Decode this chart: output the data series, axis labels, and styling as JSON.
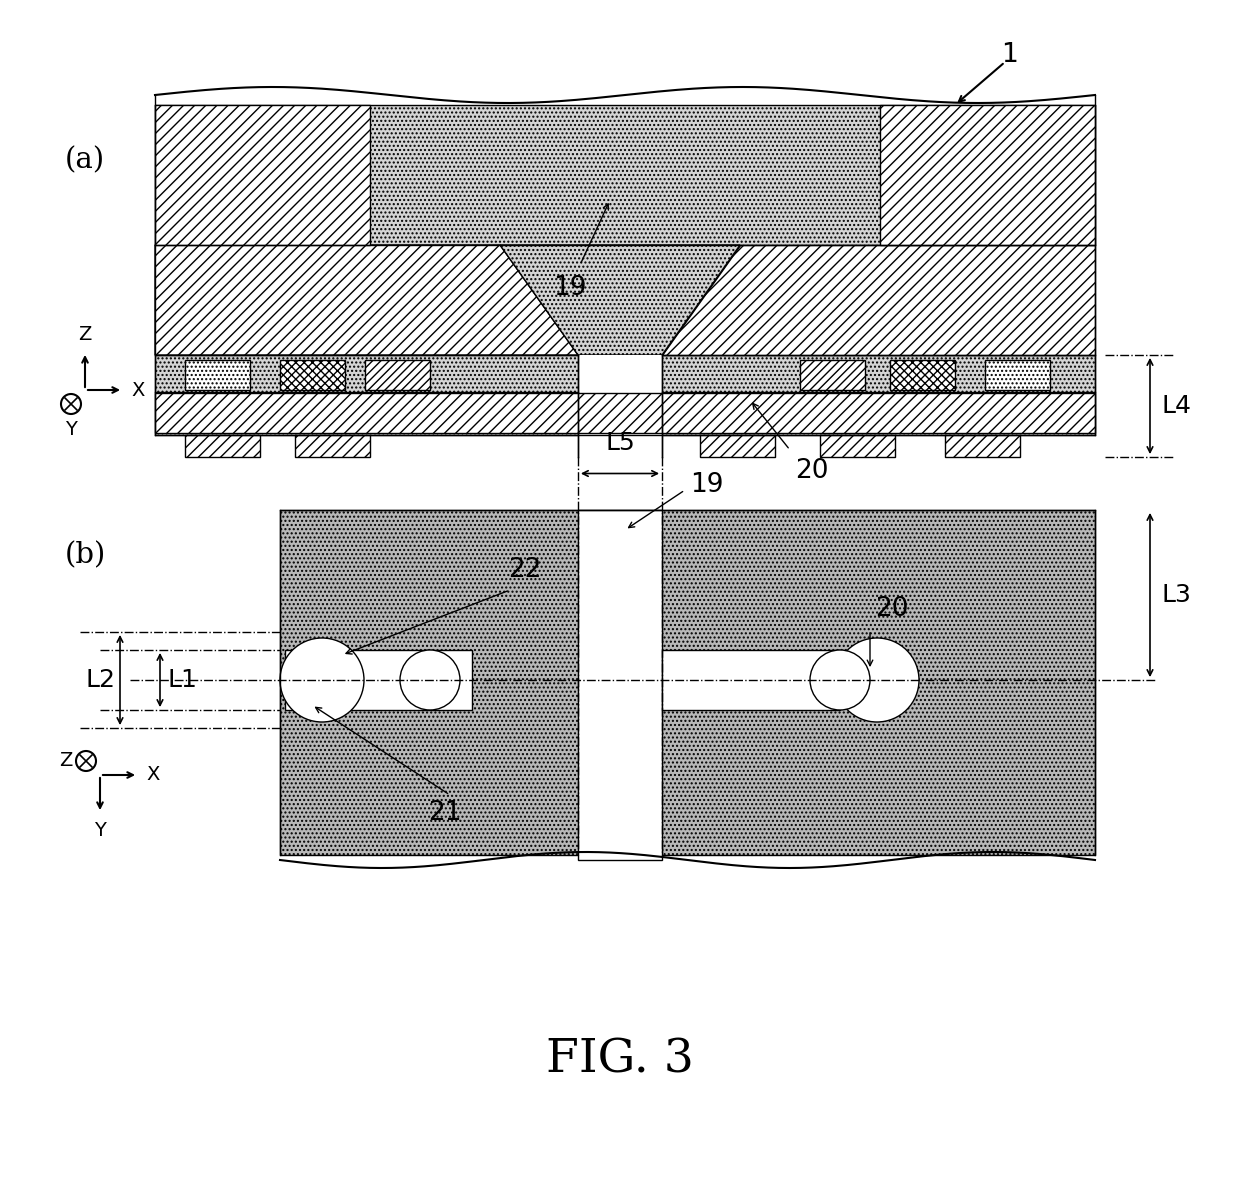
{
  "title": "FIG. 3",
  "panel_a_label": "(a)",
  "panel_b_label": "(b)",
  "label_1": "1",
  "label_19_a": "19",
  "label_20_a": "20",
  "label_19_b": "19",
  "label_20_b": "20",
  "label_21": "21",
  "label_22": "22",
  "label_L1": "L1",
  "label_L2": "L2",
  "label_L3": "L3",
  "label_L4": "L4",
  "label_L5": "L5",
  "bg_color": "#ffffff",
  "dot_fill": "#d4d4d4",
  "gray_fill": "#b8b8b8",
  "hatch_fill": "#ffffff"
}
